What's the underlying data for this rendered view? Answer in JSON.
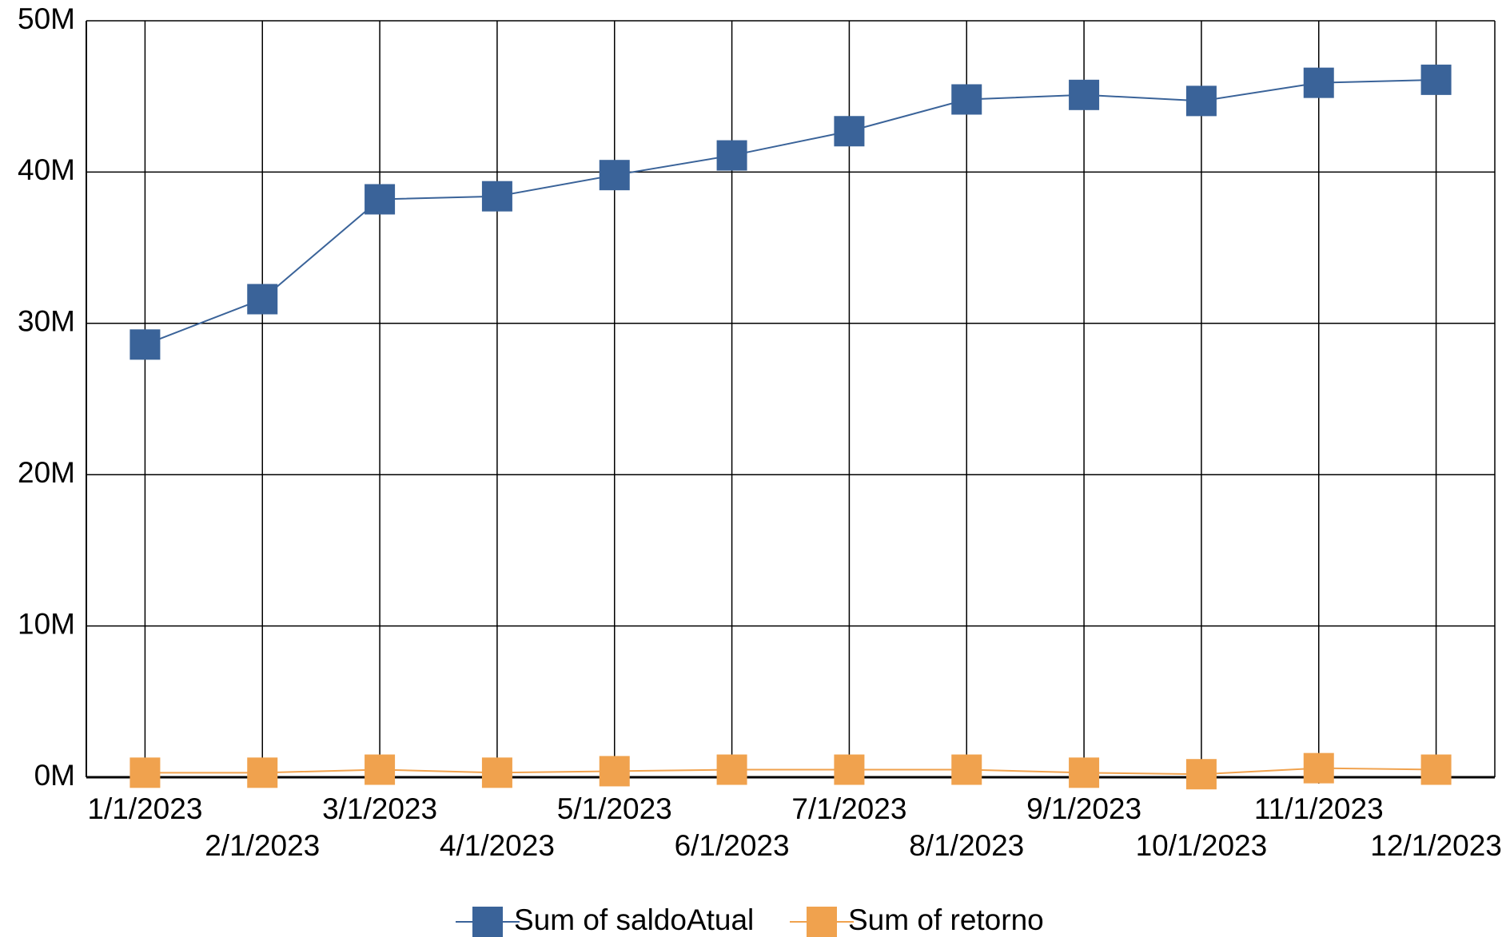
{
  "chart_data": {
    "type": "line",
    "categories": [
      "1/1/2023",
      "2/1/2023",
      "3/1/2023",
      "4/1/2023",
      "5/1/2023",
      "6/1/2023",
      "7/1/2023",
      "8/1/2023",
      "9/1/2023",
      "10/1/2023",
      "11/1/2023",
      "12/1/2023"
    ],
    "series": [
      {
        "name": "Sum of saldoAtual",
        "color": "#3a6399",
        "values": [
          28600000,
          31600000,
          38200000,
          38400000,
          39800000,
          41100000,
          42700000,
          44800000,
          45100000,
          44700000,
          45900000,
          46100000
        ]
      },
      {
        "name": "Sum of retorno",
        "color": "#f0a24e",
        "values": [
          300000,
          300000,
          500000,
          300000,
          400000,
          500000,
          500000,
          500000,
          300000,
          200000,
          600000,
          500000
        ]
      }
    ],
    "ylim": [
      0,
      50000000
    ],
    "yticks": [
      {
        "value": 0,
        "label": "0M"
      },
      {
        "value": 10000000,
        "label": "10M"
      },
      {
        "value": 20000000,
        "label": "20M"
      },
      {
        "value": 30000000,
        "label": "30M"
      },
      {
        "value": 40000000,
        "label": "40M"
      },
      {
        "value": 50000000,
        "label": "50M"
      }
    ],
    "grid": true,
    "legend": "bottom"
  }
}
